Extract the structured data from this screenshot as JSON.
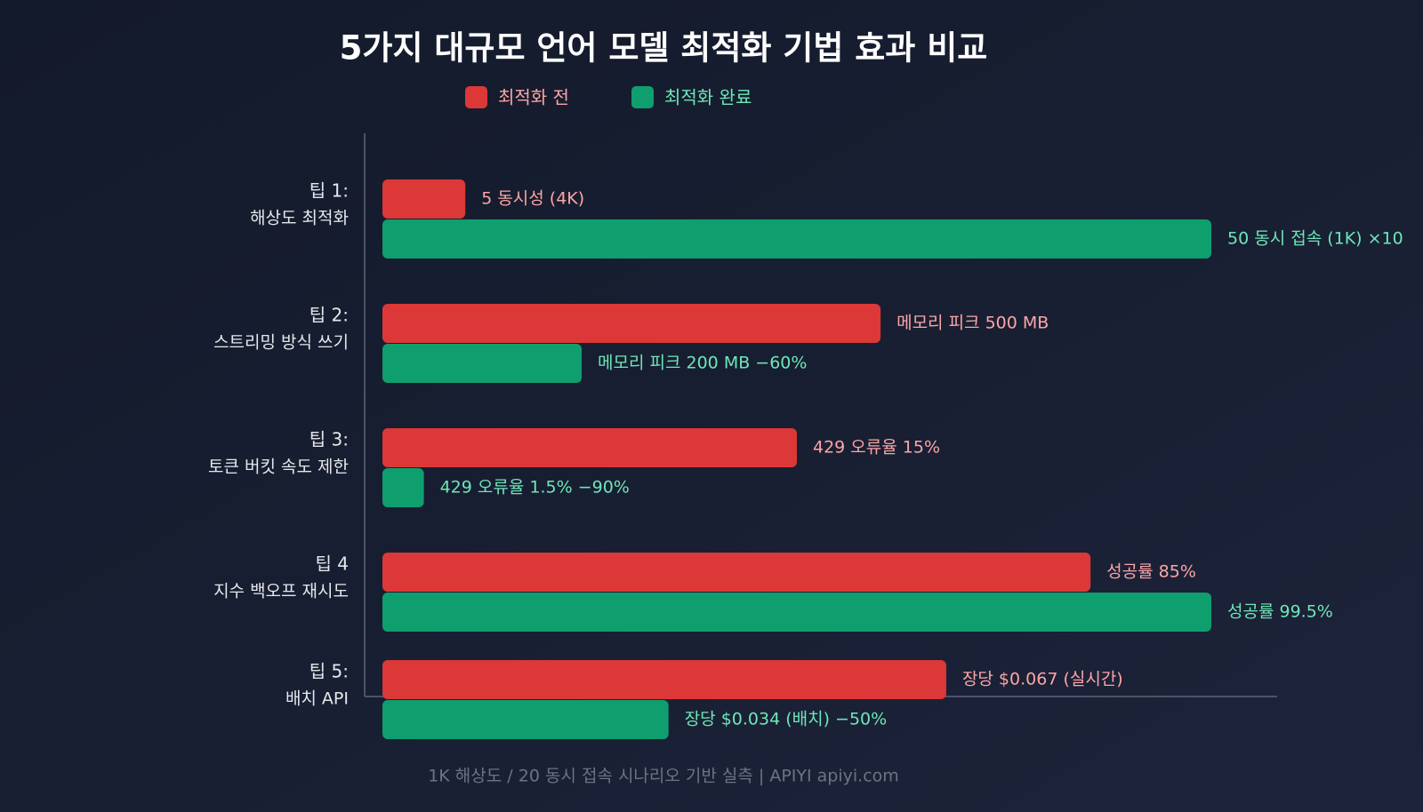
{
  "chart_data": {
    "type": "bar",
    "orientation": "horizontal",
    "title": "5가지 대규모 언어 모델 최적화 기법 효과 비교",
    "categories": [
      [
        "팁 1:",
        "해상도 최적화"
      ],
      [
        "팁 2:",
        "스트리밍 방식 쓰기"
      ],
      [
        "팁 3:",
        "토큰 버킷 속도 제한"
      ],
      [
        "팁 4",
        "지수 백오프 재시도"
      ],
      [
        "팁 5:",
        "배치 API"
      ]
    ],
    "group_xlim": [
      [
        0,
        50
      ],
      [
        0,
        832
      ],
      [
        0,
        30
      ],
      [
        0,
        99.5
      ],
      [
        0,
        0.0985
      ]
    ],
    "series": [
      {
        "name": "최적화 전",
        "color": "#dc3838",
        "label_color": "#fca5a5",
        "values": [
          5,
          500,
          15,
          85,
          0.067
        ],
        "value_labels": [
          "5 동시성 (4K)",
          "메모리 피크 500 MB",
          "429 오류율 15%",
          "성공률 85%",
          "장당 $0.067 (실시간)"
        ]
      },
      {
        "name": "최적화 완료",
        "color": "#0f9e6e",
        "label_color": "#6ee7b7",
        "values": [
          50,
          200,
          1.5,
          99.5,
          0.034
        ],
        "value_labels": [
          "50 동시 접속 (1K) ×10",
          "메모리 피크 200 MB −60%",
          "429 오류율 1.5% −90%",
          "성공률 99.5%",
          "장당 $0.034 (배치) −50%"
        ]
      }
    ],
    "footnote": "1K 해상도 / 20 동시 접속 시나리오 기반 실측 | APIYI apiyi.com"
  }
}
